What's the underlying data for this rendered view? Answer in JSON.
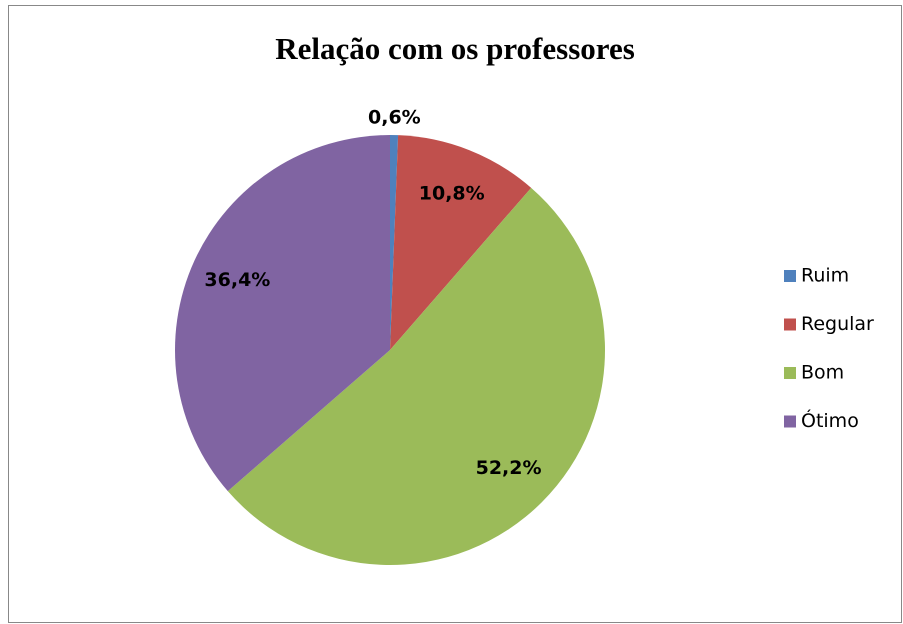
{
  "chart_data": {
    "type": "pie",
    "title": "Relação com os professores",
    "categories": [
      "Ruim",
      "Regular",
      "Bom",
      "Ótimo"
    ],
    "values": [
      0.6,
      10.8,
      52.2,
      36.4
    ],
    "value_labels": [
      "0,6%",
      "10,8%",
      "52,2%",
      "36,4%"
    ],
    "colors": [
      "#4f81bd",
      "#c0504d",
      "#9bbb59",
      "#8064a2"
    ],
    "legend": "right"
  }
}
